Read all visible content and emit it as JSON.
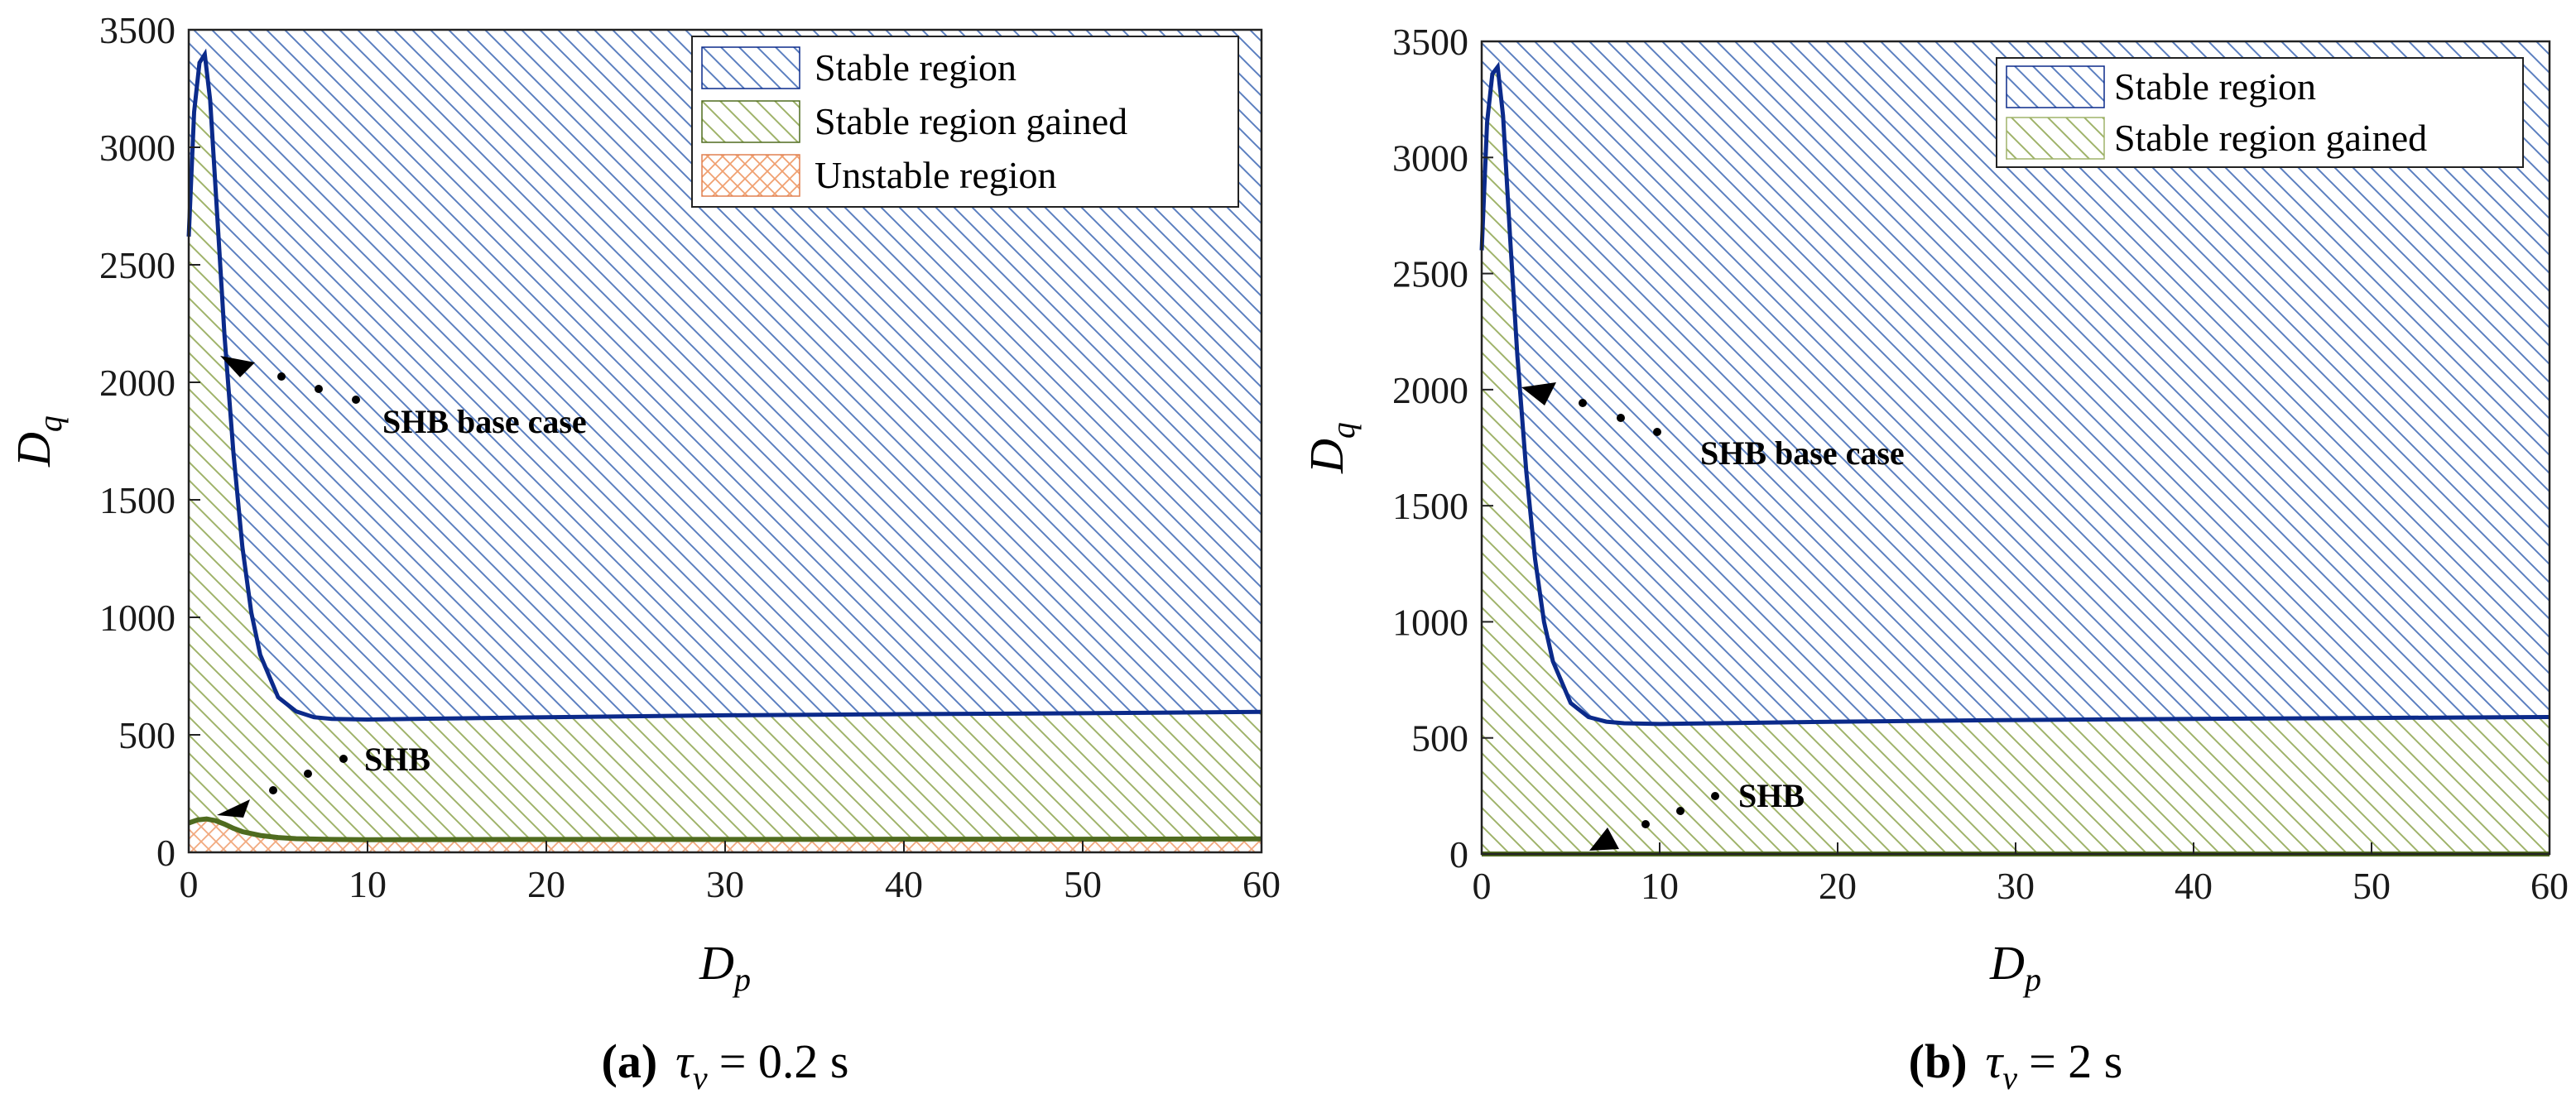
{
  "chart_data": [
    {
      "type": "area",
      "caption": {
        "label": "(a)",
        "tau_symbol": "τ",
        "tau_sub": "v",
        "value": "= 0.2 s"
      },
      "xlabel": {
        "main": "D",
        "sub": "p"
      },
      "ylabel": {
        "main": "D",
        "sub": "q"
      },
      "xlim": [
        0,
        60
      ],
      "ylim": [
        0,
        3500
      ],
      "x_ticks": [
        "0",
        "10",
        "20",
        "30",
        "40",
        "50",
        "60"
      ],
      "y_ticks": [
        "0",
        "500",
        "1000",
        "1500",
        "2000",
        "2500",
        "3000",
        "3500"
      ],
      "legend": [
        {
          "label": "Stable region",
          "style": "blue-hatch"
        },
        {
          "label": "Stable region gained",
          "style": "green-hatch"
        },
        {
          "label": "Unstable region",
          "style": "orange-crosshatch"
        }
      ],
      "series": [
        {
          "name": "SHB base case",
          "x": [
            0,
            0.3,
            0.6,
            0.9,
            1.2,
            1.6,
            2.0,
            2.5,
            3.0,
            3.5,
            4.0,
            5.0,
            6.0,
            7.0,
            8.0,
            10,
            15,
            20,
            30,
            40,
            50,
            60
          ],
          "y": [
            2620,
            3150,
            3360,
            3395,
            3200,
            2700,
            2200,
            1700,
            1300,
            1020,
            840,
            660,
            600,
            575,
            568,
            565,
            570,
            575,
            583,
            588,
            592,
            598
          ]
        },
        {
          "name": "SHB",
          "x": [
            0,
            0.5,
            1.0,
            1.5,
            2.0,
            2.5,
            3.0,
            4.0,
            5.0,
            6.0,
            8.0,
            10,
            20,
            30,
            40,
            50,
            60
          ],
          "y": [
            125,
            138,
            142,
            135,
            120,
            102,
            88,
            72,
            63,
            58,
            55,
            54,
            55,
            55,
            56,
            56,
            57
          ]
        }
      ],
      "annotations": [
        {
          "text": "SHB base case",
          "x": 2.5,
          "y": 2120
        },
        {
          "text": "SHB",
          "x": 2.0,
          "y": 195
        }
      ]
    },
    {
      "type": "area",
      "caption": {
        "label": "(b)",
        "tau_symbol": "τ",
        "tau_sub": "v",
        "value": "= 2 s"
      },
      "xlabel": {
        "main": "D",
        "sub": "p"
      },
      "ylabel": {
        "main": "D",
        "sub": "q"
      },
      "xlim": [
        0,
        60
      ],
      "ylim": [
        0,
        3500
      ],
      "x_ticks": [
        "0",
        "10",
        "20",
        "30",
        "40",
        "50",
        "60"
      ],
      "y_ticks": [
        "0",
        "500",
        "1000",
        "1500",
        "2000",
        "2500",
        "3000",
        "3500"
      ],
      "legend": [
        {
          "label": "Stable region",
          "style": "blue-hatch"
        },
        {
          "label": "Stable region gained",
          "style": "green-hatch"
        }
      ],
      "series": [
        {
          "name": "SHB base case",
          "x": [
            0,
            0.3,
            0.6,
            0.9,
            1.2,
            1.6,
            2.0,
            2.5,
            3.0,
            3.5,
            4.0,
            5.0,
            6.0,
            7.0,
            8.0,
            10,
            15,
            20,
            30,
            40,
            50,
            60
          ],
          "y": [
            2600,
            3150,
            3360,
            3390,
            3180,
            2650,
            2150,
            1650,
            1270,
            1000,
            830,
            650,
            590,
            570,
            563,
            560,
            565,
            570,
            577,
            582,
            586,
            590
          ]
        },
        {
          "name": "SHB",
          "x": [
            0,
            10,
            20,
            30,
            40,
            50,
            60
          ],
          "y": [
            0,
            0,
            0,
            0,
            0,
            0,
            0
          ]
        }
      ],
      "annotations": [
        {
          "text": "SHB base case",
          "x": 2.8,
          "y": 1990
        },
        {
          "text": "SHB",
          "x": 6.8,
          "y": 30
        }
      ]
    }
  ]
}
